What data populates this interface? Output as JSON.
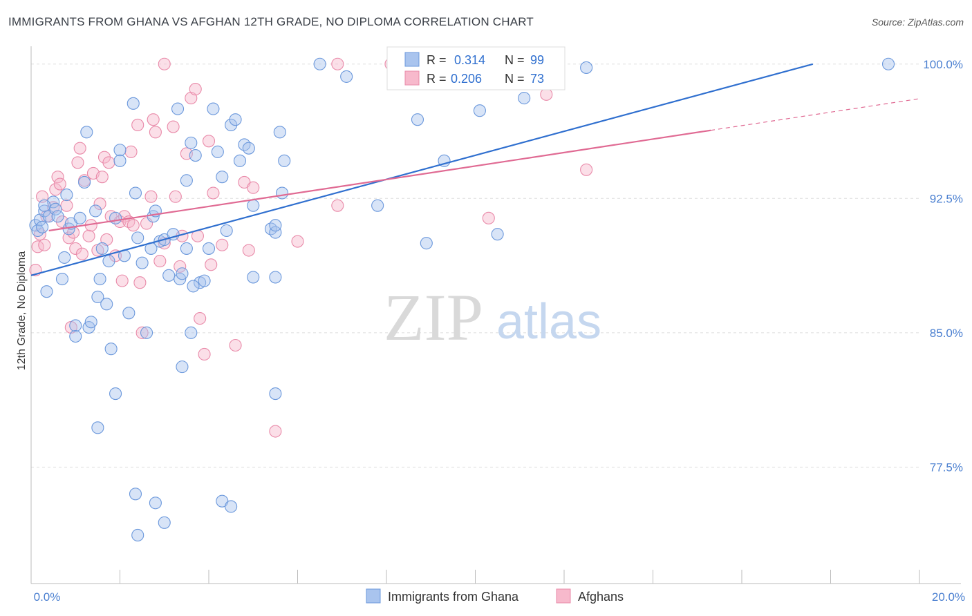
{
  "title": "IMMIGRANTS FROM GHANA VS AFGHAN 12TH GRADE, NO DIPLOMA CORRELATION CHART",
  "source": "Source: ZipAtlas.com",
  "watermark": {
    "zip": "ZIP",
    "atlas": "atlas"
  },
  "colors": {
    "series_a_fill": "#a9c4ee",
    "series_a_stroke": "#6b98dc",
    "series_a_line": "#2f6fcf",
    "series_b_fill": "#f7b9cc",
    "series_b_stroke": "#e98aa9",
    "series_b_line": "#e06a93",
    "tick_label": "#4a7fd0",
    "grid": "#dddddd"
  },
  "stats_legend": {
    "rows": [
      {
        "r_label": "R = ",
        "r_value": "0.314",
        "n_label": "N = ",
        "n_value": "99"
      },
      {
        "r_label": "R = ",
        "r_value": "0.206",
        "n_label": "N = ",
        "n_value": "73"
      }
    ]
  },
  "chart_data": {
    "type": "scatter",
    "title": "IMMIGRANTS FROM GHANA VS AFGHAN 12TH GRADE, NO DIPLOMA CORRELATION CHART",
    "xlabel": "",
    "ylabel": "12th Grade, No Diploma",
    "xlim": [
      0,
      20
    ],
    "ylim": [
      71,
      100.8
    ],
    "x_tick_labels": [
      "0.0%",
      "20.0%"
    ],
    "y_ticks": [
      77.5,
      85.0,
      92.5,
      100.0
    ],
    "y_tick_labels": [
      "77.5%",
      "85.0%",
      "92.5%",
      "100.0%"
    ],
    "grid": true,
    "legend_position": "bottom-center",
    "series": [
      {
        "name": "Immigrants from Ghana",
        "r": 0.314,
        "n": 99,
        "trend": {
          "x": [
            0,
            17.6
          ],
          "y": [
            88.2,
            100.0
          ]
        },
        "points": [
          [
            0.1,
            91.0
          ],
          [
            0.15,
            90.7
          ],
          [
            0.2,
            91.3
          ],
          [
            0.25,
            90.9
          ],
          [
            0.3,
            91.8
          ],
          [
            0.35,
            87.3
          ],
          [
            0.4,
            91.5
          ],
          [
            0.5,
            92.3
          ],
          [
            0.55,
            91.9
          ],
          [
            0.6,
            91.5
          ],
          [
            0.3,
            92.1
          ],
          [
            0.7,
            88.0
          ],
          [
            0.75,
            89.2
          ],
          [
            0.8,
            92.7
          ],
          [
            0.85,
            90.8
          ],
          [
            0.9,
            91.1
          ],
          [
            1.0,
            85.4
          ],
          [
            1.1,
            91.4
          ],
          [
            1.2,
            93.4
          ],
          [
            1.25,
            96.2
          ],
          [
            1.3,
            85.3
          ],
          [
            1.35,
            85.6
          ],
          [
            1.45,
            91.8
          ],
          [
            1.5,
            87.0
          ],
          [
            1.55,
            88.0
          ],
          [
            1.6,
            89.7
          ],
          [
            1.7,
            86.6
          ],
          [
            1.75,
            89.0
          ],
          [
            1.8,
            84.1
          ],
          [
            1.9,
            91.4
          ],
          [
            2.0,
            95.2
          ],
          [
            2.0,
            94.6
          ],
          [
            2.1,
            89.3
          ],
          [
            2.2,
            86.1
          ],
          [
            2.3,
            97.8
          ],
          [
            2.35,
            92.8
          ],
          [
            2.4,
            90.3
          ],
          [
            2.5,
            88.9
          ],
          [
            2.6,
            85.0
          ],
          [
            2.7,
            89.7
          ],
          [
            2.75,
            91.5
          ],
          [
            2.8,
            91.8
          ],
          [
            2.9,
            90.1
          ],
          [
            3.0,
            90.2
          ],
          [
            3.1,
            88.2
          ],
          [
            3.2,
            90.5
          ],
          [
            3.3,
            97.5
          ],
          [
            3.35,
            88.0
          ],
          [
            3.4,
            88.3
          ],
          [
            3.5,
            89.7
          ],
          [
            3.5,
            93.5
          ],
          [
            3.6,
            95.6
          ],
          [
            3.7,
            94.9
          ],
          [
            3.8,
            87.8
          ],
          [
            3.9,
            87.9
          ],
          [
            4.0,
            89.7
          ],
          [
            4.1,
            97.5
          ],
          [
            4.2,
            95.1
          ],
          [
            4.3,
            93.7
          ],
          [
            4.4,
            90.7
          ],
          [
            4.5,
            96.6
          ],
          [
            4.6,
            96.9
          ],
          [
            4.7,
            94.6
          ],
          [
            4.8,
            95.5
          ],
          [
            4.9,
            95.3
          ],
          [
            5.0,
            92.1
          ],
          [
            5.0,
            88.1
          ],
          [
            5.4,
            90.8
          ],
          [
            5.5,
            90.6
          ],
          [
            5.6,
            96.2
          ],
          [
            5.7,
            94.6
          ],
          [
            5.65,
            92.8
          ],
          [
            1.0,
            84.8
          ],
          [
            1.5,
            79.7
          ],
          [
            1.9,
            81.6
          ],
          [
            2.35,
            76.0
          ],
          [
            2.4,
            73.7
          ],
          [
            2.8,
            75.5
          ],
          [
            3.0,
            74.4
          ],
          [
            3.4,
            83.1
          ],
          [
            3.6,
            85.0
          ],
          [
            3.65,
            87.6
          ],
          [
            4.3,
            75.6
          ],
          [
            4.5,
            75.3
          ],
          [
            5.5,
            81.6
          ],
          [
            5.5,
            91.0
          ],
          [
            6.5,
            100.0
          ],
          [
            7.1,
            99.3
          ],
          [
            7.8,
            92.1
          ],
          [
            8.2,
            100.0
          ],
          [
            8.7,
            96.9
          ],
          [
            8.9,
            90.0
          ],
          [
            9.3,
            94.6
          ],
          [
            10.1,
            97.4
          ],
          [
            10.5,
            90.5
          ],
          [
            11.1,
            98.1
          ],
          [
            12.5,
            99.8
          ],
          [
            19.3,
            100.0
          ],
          [
            5.5,
            88.1
          ]
        ]
      },
      {
        "name": "Afghans",
        "r": 0.206,
        "n": 73,
        "trend": {
          "x": [
            0.4,
            15.3
          ],
          "y": [
            90.7,
            96.3
          ]
        },
        "points": [
          [
            0.1,
            88.5
          ],
          [
            0.15,
            89.8
          ],
          [
            0.2,
            90.5
          ],
          [
            0.25,
            92.6
          ],
          [
            0.3,
            89.9
          ],
          [
            0.35,
            91.5
          ],
          [
            0.5,
            92.0
          ],
          [
            0.55,
            93.0
          ],
          [
            0.6,
            93.7
          ],
          [
            0.65,
            93.3
          ],
          [
            0.7,
            91.2
          ],
          [
            0.8,
            92.1
          ],
          [
            0.85,
            90.3
          ],
          [
            0.9,
            85.3
          ],
          [
            0.95,
            90.6
          ],
          [
            1.0,
            89.7
          ],
          [
            1.05,
            94.5
          ],
          [
            1.1,
            95.3
          ],
          [
            1.15,
            89.4
          ],
          [
            1.2,
            93.5
          ],
          [
            1.3,
            90.4
          ],
          [
            1.35,
            91.0
          ],
          [
            1.4,
            93.9
          ],
          [
            1.5,
            89.6
          ],
          [
            1.55,
            92.2
          ],
          [
            1.6,
            93.7
          ],
          [
            1.65,
            94.8
          ],
          [
            1.7,
            90.2
          ],
          [
            1.75,
            94.5
          ],
          [
            1.8,
            91.5
          ],
          [
            1.9,
            89.3
          ],
          [
            2.0,
            91.2
          ],
          [
            2.05,
            87.9
          ],
          [
            2.1,
            91.5
          ],
          [
            2.2,
            91.2
          ],
          [
            2.25,
            95.1
          ],
          [
            2.3,
            91.0
          ],
          [
            2.4,
            96.6
          ],
          [
            2.45,
            87.8
          ],
          [
            2.5,
            85.0
          ],
          [
            2.6,
            91.1
          ],
          [
            2.7,
            92.6
          ],
          [
            2.75,
            96.9
          ],
          [
            2.8,
            96.2
          ],
          [
            2.9,
            89.0
          ],
          [
            3.0,
            90.0
          ],
          [
            3.0,
            100.0
          ],
          [
            3.2,
            96.5
          ],
          [
            3.25,
            92.6
          ],
          [
            3.35,
            88.7
          ],
          [
            3.4,
            90.4
          ],
          [
            3.5,
            95.0
          ],
          [
            3.6,
            98.1
          ],
          [
            3.7,
            98.6
          ],
          [
            3.75,
            90.4
          ],
          [
            3.8,
            85.8
          ],
          [
            3.9,
            83.8
          ],
          [
            4.0,
            95.7
          ],
          [
            4.05,
            88.8
          ],
          [
            4.1,
            92.8
          ],
          [
            4.3,
            89.9
          ],
          [
            4.6,
            84.3
          ],
          [
            4.8,
            93.4
          ],
          [
            4.9,
            89.6
          ],
          [
            5.0,
            93.1
          ],
          [
            5.5,
            79.5
          ],
          [
            6.0,
            90.1
          ],
          [
            6.9,
            92.1
          ],
          [
            6.9,
            100.0
          ],
          [
            8.1,
            100.0
          ],
          [
            10.3,
            91.4
          ],
          [
            11.6,
            98.3
          ],
          [
            12.5,
            94.1
          ]
        ]
      }
    ]
  },
  "legend": {
    "items": [
      {
        "label": "Immigrants from Ghana"
      },
      {
        "label": "Afghans"
      }
    ]
  }
}
